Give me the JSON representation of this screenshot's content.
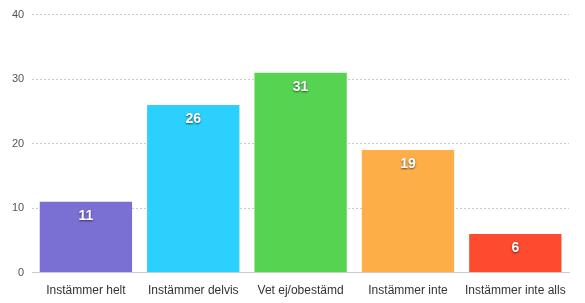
{
  "chart_data": {
    "type": "bar",
    "categories": [
      "Instämmer helt",
      "Instämmer delvis",
      "Vet ej/obestämd",
      "Instämmer inte",
      "Instämmer inte alls"
    ],
    "values": [
      11,
      26,
      31,
      19,
      6
    ],
    "colors": [
      "#7a6fd3",
      "#2bd0fd",
      "#57d352",
      "#feae47",
      "#fe4a2e"
    ],
    "ylim": [
      0,
      40
    ],
    "yticks": [
      0,
      10,
      20,
      30,
      40
    ],
    "grid": true,
    "data_labels": true
  }
}
